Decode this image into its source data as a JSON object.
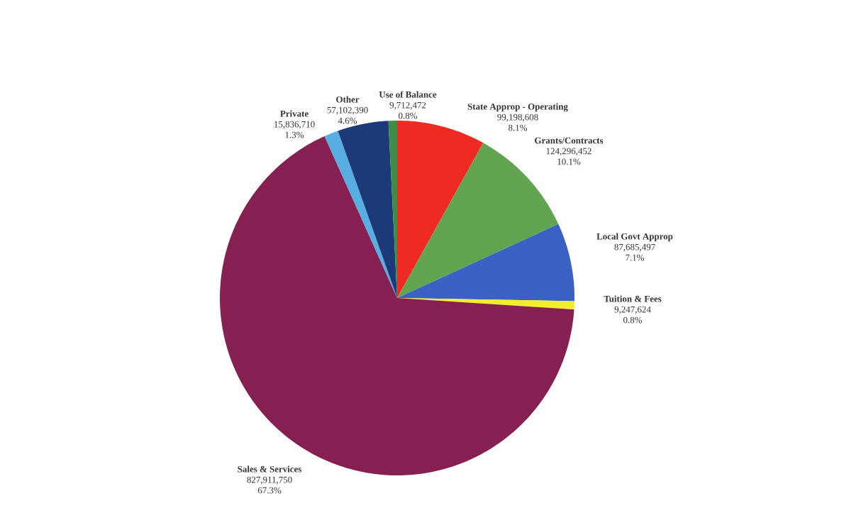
{
  "chart_data": {
    "type": "pie",
    "categories": [
      "State Approp - Operating",
      "Grants/Contracts",
      "Local Govt Approp",
      "Tuition & Fees",
      "Sales & Services",
      "Private",
      "Other",
      "Use of Balance"
    ],
    "values": [
      99198608,
      124296452,
      87685497,
      9247624,
      827911750,
      15836710,
      57102390,
      9712472
    ],
    "colors": [
      "#ee2a22",
      "#62a450",
      "#3a62c4",
      "#f2ee2a",
      "#862052",
      "#58aee0",
      "#1c3a78",
      "#3e8c46"
    ],
    "value_labels": [
      "99,198,608",
      "124,296,452",
      "87,685,497",
      "9,247,624",
      "827,911,750",
      "15,836,710",
      "57,102,390",
      "9,712,472"
    ],
    "annotations": [
      "8.1%",
      "10.1%",
      "7.1%",
      "0.8%",
      "67.3%",
      "1.3%",
      "4.6%",
      "0.8%"
    ]
  }
}
